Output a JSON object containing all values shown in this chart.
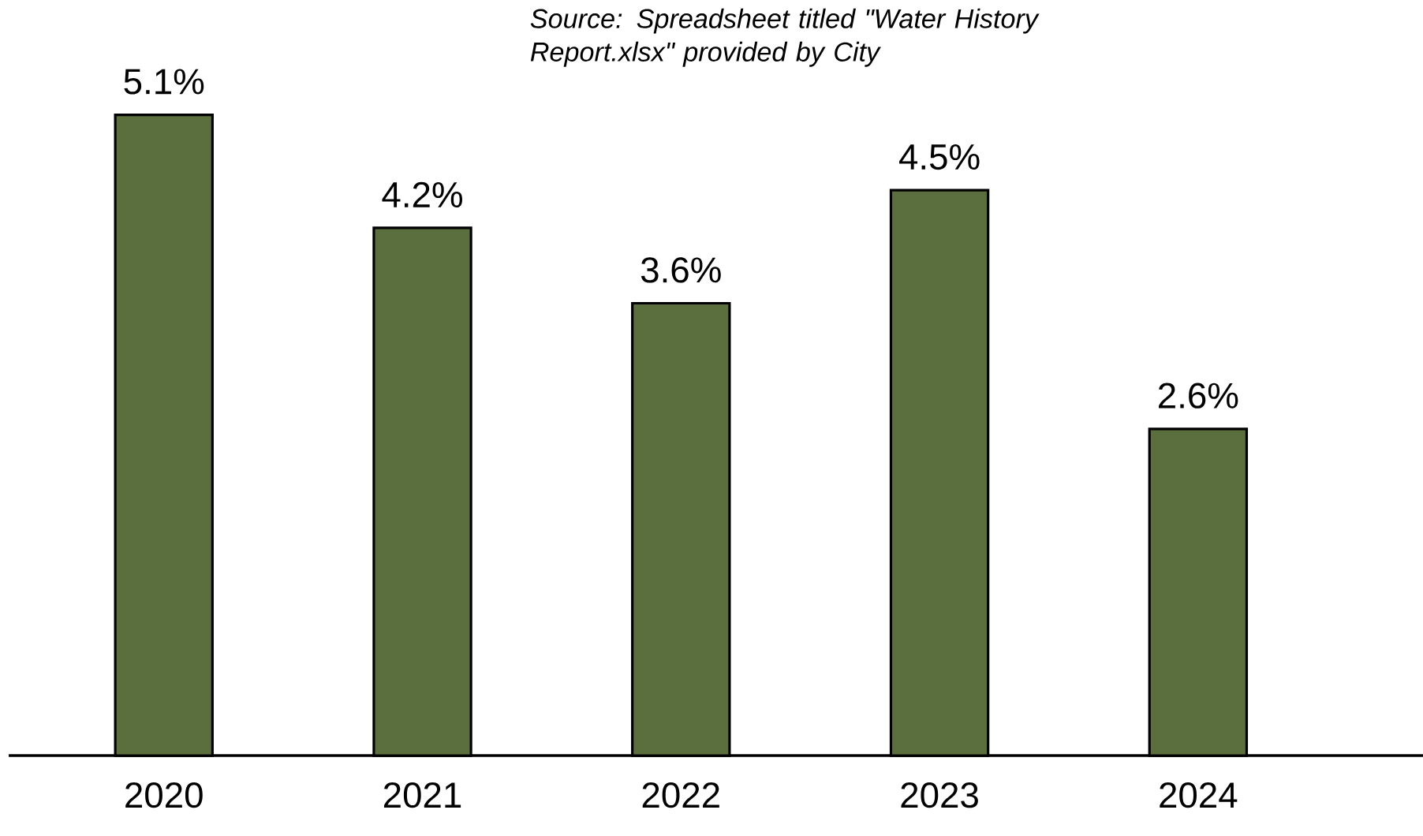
{
  "chart_data": {
    "type": "bar",
    "annotations": [
      "Source: Spreadsheet titled \"Water History Report.xlsx\" provided by City"
    ],
    "categories": [
      "2020",
      "2021",
      "2022",
      "2023",
      "2024"
    ],
    "values": [
      5.1,
      4.2,
      3.6,
      4.5,
      2.6
    ],
    "value_labels": [
      "5.1%",
      "4.2%",
      "3.6%",
      "4.5%",
      "2.6%"
    ],
    "color": "#5b6e3d"
  }
}
